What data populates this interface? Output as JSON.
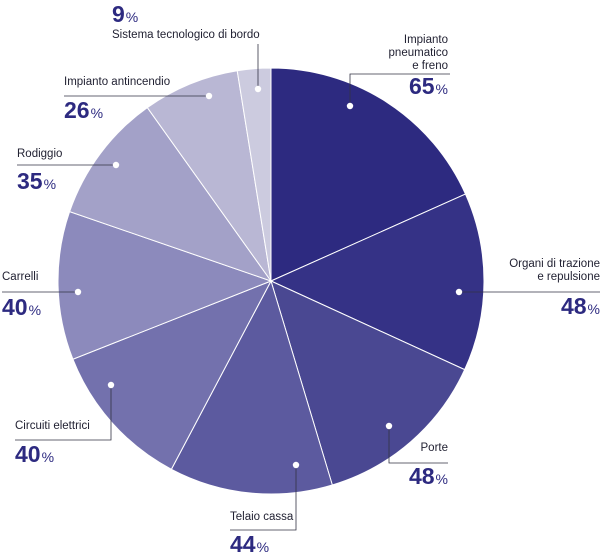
{
  "chart_data": {
    "type": "pie",
    "title": "",
    "unit": "%",
    "start_angle_deg": 0,
    "direction": "clockwise",
    "slices": [
      {
        "label": "Impianto pneumatico e freno",
        "value": 65,
        "color": "#2d2a80"
      },
      {
        "label": "Organi di trazione e repulsione",
        "value": 48,
        "color": "#353286"
      },
      {
        "label": "Porte",
        "value": 48,
        "color": "#4a4892"
      },
      {
        "label": "Telaio cassa",
        "value": 44,
        "color": "#5c5a9f"
      },
      {
        "label": "Circuiti elettrici",
        "value": 40,
        "color": "#7371ad"
      },
      {
        "label": "Carrelli",
        "value": 40,
        "color": "#8c8abc"
      },
      {
        "label": "Rodiggio",
        "value": 35,
        "color": "#a3a1c8"
      },
      {
        "label": "Impianto antincendio",
        "value": 26,
        "color": "#b9b7d4"
      },
      {
        "label": "Sistema tecnologico di bordo",
        "value": 9,
        "color": "#cccbdf"
      }
    ],
    "label_color": "#2d2a80"
  },
  "labels": [
    {
      "name": "Impianto\npneumatico\ne freno",
      "value": "65",
      "unit": "%"
    },
    {
      "name": "Organi di trazione\ne repulsione",
      "value": "48",
      "unit": "%"
    },
    {
      "name": "Porte",
      "value": "48",
      "unit": "%"
    },
    {
      "name": "Telaio cassa",
      "value": "44",
      "unit": "%"
    },
    {
      "name": "Circuiti elettrici",
      "value": "40",
      "unit": "%"
    },
    {
      "name": "Carrelli",
      "value": "40",
      "unit": "%"
    },
    {
      "name": "Rodiggio",
      "value": "35",
      "unit": "%"
    },
    {
      "name": "Impianto antincendio",
      "value": "26",
      "unit": "%"
    },
    {
      "name": "Sistema tecnologico di bordo",
      "value": "9",
      "unit": "%"
    }
  ]
}
